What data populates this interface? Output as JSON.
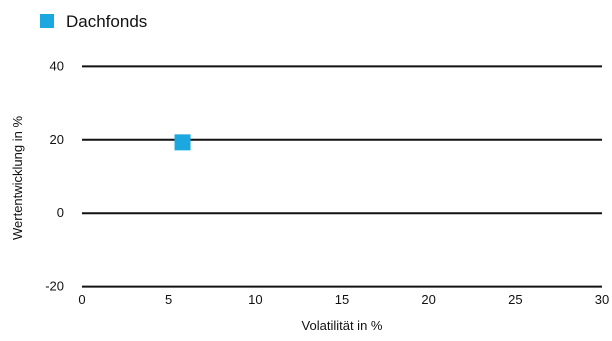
{
  "chart_data": {
    "type": "scatter",
    "title": "",
    "xlabel": "Volatilität in %",
    "ylabel": "Wertentwicklung in %",
    "xlim": [
      0,
      30
    ],
    "ylim": [
      -25,
      45
    ],
    "x_ticks": [
      0,
      5,
      10,
      15,
      20,
      25,
      30
    ],
    "x_tick_labels": [
      "0",
      "5",
      "10",
      "15",
      "20",
      "25",
      "30"
    ],
    "y_ticks": [
      40,
      20,
      0,
      -20
    ],
    "y_tick_labels": [
      "40",
      "20",
      "0",
      "-20"
    ],
    "grid": "horizontal",
    "legend": {
      "placement": "top-left",
      "entries": [
        {
          "name": "Dachfonds",
          "color": "#1ba8e0",
          "marker": "square"
        }
      ]
    },
    "series": [
      {
        "name": "Dachfonds",
        "color": "#1ba8e0",
        "marker": "square",
        "points": [
          {
            "x": 5.8,
            "y": 19.3
          }
        ]
      }
    ]
  }
}
